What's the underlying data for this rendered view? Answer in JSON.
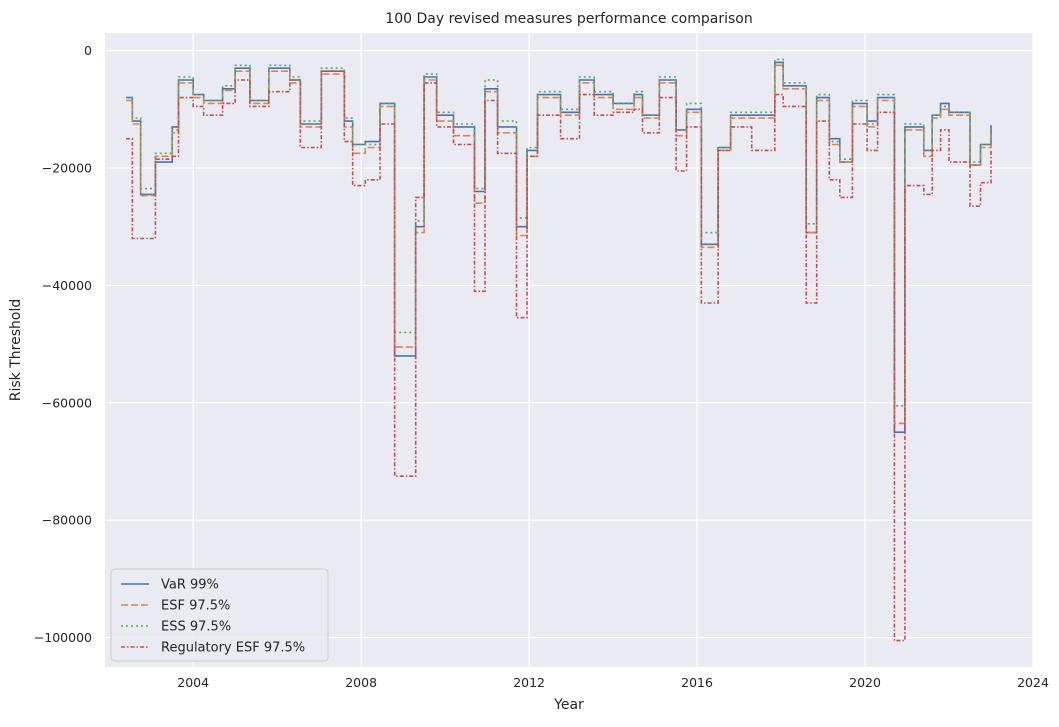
{
  "chart_data": {
    "type": "line",
    "title": "100 Day revised measures performance comparison",
    "xlabel": "Year",
    "ylabel": "Risk Threshold",
    "xlim": [
      2001.9,
      2024.0
    ],
    "ylim": [
      -105000,
      3000
    ],
    "x_ticks": [
      2004,
      2008,
      2012,
      2016,
      2020,
      2024
    ],
    "y_ticks": [
      0,
      -20000,
      -40000,
      -60000,
      -80000,
      -100000
    ],
    "y_tick_labels": [
      "0",
      "−20000",
      "−40000",
      "−60000",
      "−80000",
      "−100000"
    ],
    "grid": true,
    "legend_position": "lower-left",
    "background": "#eaeaf2",
    "series": [
      {
        "name": "VaR 99%",
        "color": "#4c72b0",
        "dash": "solid",
        "x": [
          2002.4,
          2002.55,
          2002.75,
          2003.1,
          2003.5,
          2003.65,
          2004.0,
          2004.25,
          2004.7,
          2005.0,
          2005.35,
          2005.8,
          2006.3,
          2006.55,
          2007.05,
          2007.6,
          2007.8,
          2008.1,
          2008.45,
          2008.8,
          2009.3,
          2009.5,
          2009.8,
          2010.2,
          2010.7,
          2010.95,
          2011.25,
          2011.7,
          2011.95,
          2012.2,
          2012.75,
          2013.2,
          2013.55,
          2014.0,
          2014.5,
          2014.7,
          2015.1,
          2015.5,
          2015.75,
          2016.1,
          2016.5,
          2016.8,
          2017.3,
          2017.85,
          2018.05,
          2018.6,
          2018.85,
          2019.15,
          2019.4,
          2019.7,
          2020.05,
          2020.3,
          2020.7,
          2020.95,
          2021.4,
          2021.6,
          2021.8,
          2022.0,
          2022.5,
          2022.75,
          2023.0
        ],
        "y": [
          -8000,
          -12000,
          -24500,
          -19000,
          -13000,
          -5000,
          -7500,
          -8500,
          -6500,
          -3000,
          -8500,
          -3000,
          -5000,
          -12500,
          -3500,
          -12000,
          -16000,
          -15500,
          -9000,
          -52000,
          -30000,
          -4500,
          -11000,
          -13000,
          -24000,
          -6500,
          -13000,
          -30000,
          -17000,
          -7500,
          -10500,
          -5000,
          -7500,
          -9000,
          -7500,
          -11000,
          -5000,
          -13500,
          -10000,
          -33000,
          -16500,
          -11000,
          -11000,
          -2000,
          -6000,
          -31000,
          -8000,
          -15000,
          -19000,
          -9000,
          -12000,
          -8000,
          -65000,
          -13000,
          -17000,
          -11000,
          -9000,
          -10500,
          -19500,
          -16000,
          -12700
        ]
      },
      {
        "name": "ESF 97.5%",
        "color": "#dd8452",
        "dash": "dashed",
        "x": [
          2002.4,
          2002.55,
          2002.75,
          2003.1,
          2003.5,
          2003.65,
          2004.0,
          2004.25,
          2004.7,
          2005.0,
          2005.35,
          2005.8,
          2006.3,
          2006.55,
          2007.05,
          2007.6,
          2007.8,
          2008.1,
          2008.45,
          2008.8,
          2009.3,
          2009.5,
          2009.8,
          2010.2,
          2010.7,
          2010.95,
          2011.25,
          2011.7,
          2011.95,
          2012.2,
          2012.75,
          2013.2,
          2013.55,
          2014.0,
          2014.5,
          2014.7,
          2015.1,
          2015.5,
          2015.75,
          2016.1,
          2016.5,
          2016.8,
          2017.3,
          2017.85,
          2018.05,
          2018.6,
          2018.85,
          2019.15,
          2019.4,
          2019.7,
          2020.05,
          2020.3,
          2020.7,
          2020.95,
          2021.4,
          2021.6,
          2021.8,
          2022.0,
          2022.5,
          2022.75,
          2023.0
        ],
        "y": [
          -8500,
          -12500,
          -24700,
          -18000,
          -14000,
          -5500,
          -8000,
          -9000,
          -6800,
          -3500,
          -9000,
          -3500,
          -5500,
          -13000,
          -4000,
          -13000,
          -17500,
          -16500,
          -9500,
          -50500,
          -31000,
          -5000,
          -12000,
          -14500,
          -26000,
          -7000,
          -14000,
          -31500,
          -18000,
          -8000,
          -11000,
          -5500,
          -8000,
          -10000,
          -8000,
          -11500,
          -5500,
          -14500,
          -10500,
          -33500,
          -17000,
          -11500,
          -11500,
          -2500,
          -6500,
          -31000,
          -8500,
          -16000,
          -19000,
          -9500,
          -13000,
          -8500,
          -63500,
          -13500,
          -18000,
          -11500,
          -10000,
          -11000,
          -19500,
          -16500,
          -13500
        ]
      },
      {
        "name": "ESS 97.5%",
        "color": "#55a868",
        "dash": "dotted",
        "x": [
          2002.4,
          2002.55,
          2002.75,
          2003.1,
          2003.5,
          2003.65,
          2004.0,
          2004.25,
          2004.7,
          2005.0,
          2005.35,
          2005.8,
          2006.3,
          2006.55,
          2007.05,
          2007.6,
          2007.8,
          2008.1,
          2008.45,
          2008.8,
          2009.3,
          2009.5,
          2009.8,
          2010.2,
          2010.7,
          2010.95,
          2011.25,
          2011.7,
          2011.95,
          2012.2,
          2012.75,
          2013.2,
          2013.55,
          2014.0,
          2014.5,
          2014.7,
          2015.1,
          2015.5,
          2015.75,
          2016.1,
          2016.5,
          2016.8,
          2017.3,
          2017.85,
          2018.05,
          2018.6,
          2018.85,
          2019.15,
          2019.4,
          2019.7,
          2020.05,
          2020.3,
          2020.7,
          2020.95,
          2021.4,
          2021.6,
          2021.8,
          2022.0,
          2022.5,
          2022.75,
          2023.0
        ],
        "y": [
          -8000,
          -11500,
          -23500,
          -17500,
          -13500,
          -4500,
          -7500,
          -8500,
          -6000,
          -2500,
          -8500,
          -2500,
          -4500,
          -12000,
          -3000,
          -11500,
          -16000,
          -16000,
          -9000,
          -48000,
          -29000,
          -4000,
          -10500,
          -12500,
          -23500,
          -5000,
          -12000,
          -28500,
          -16500,
          -7000,
          -10000,
          -4500,
          -7000,
          -9000,
          -7000,
          -11000,
          -4500,
          -13500,
          -9000,
          -31000,
          -16500,
          -10500,
          -10500,
          -1500,
          -5500,
          -29500,
          -7500,
          -15500,
          -18500,
          -8500,
          -12500,
          -7500,
          -60500,
          -12500,
          -17000,
          -11000,
          -9500,
          -10500,
          -19000,
          -16000,
          -13000
        ]
      },
      {
        "name": "Regulatory ESF 97.5%",
        "color": "#c44e52",
        "dash": "dashdot",
        "x": [
          2002.4,
          2002.55,
          2002.75,
          2003.1,
          2003.5,
          2003.65,
          2004.0,
          2004.25,
          2004.7,
          2005.0,
          2005.35,
          2005.8,
          2006.3,
          2006.55,
          2007.05,
          2007.6,
          2007.8,
          2008.1,
          2008.45,
          2008.8,
          2009.3,
          2009.5,
          2009.8,
          2010.2,
          2010.7,
          2010.95,
          2011.25,
          2011.7,
          2011.95,
          2012.2,
          2012.75,
          2013.2,
          2013.55,
          2014.0,
          2014.5,
          2014.7,
          2015.1,
          2015.5,
          2015.75,
          2016.1,
          2016.5,
          2016.8,
          2017.3,
          2017.85,
          2018.05,
          2018.6,
          2018.85,
          2019.15,
          2019.4,
          2019.7,
          2020.05,
          2020.3,
          2020.7,
          2020.95,
          2021.4,
          2021.6,
          2021.8,
          2022.0,
          2022.5,
          2022.75,
          2023.0
        ],
        "y": [
          -15000,
          -32000,
          -32000,
          -18500,
          -18000,
          -8000,
          -9500,
          -11000,
          -9000,
          -5000,
          -9500,
          -7000,
          -5000,
          -16500,
          -3500,
          -15500,
          -23000,
          -22000,
          -12500,
          -72500,
          -25000,
          -5500,
          -13000,
          -16000,
          -41000,
          -8500,
          -17500,
          -45500,
          -18000,
          -11000,
          -15000,
          -7500,
          -11000,
          -10500,
          -10000,
          -14000,
          -8000,
          -20500,
          -13000,
          -43000,
          -17000,
          -13000,
          -17000,
          -7500,
          -9500,
          -43000,
          -12000,
          -22000,
          -25000,
          -12500,
          -17000,
          -10500,
          -100500,
          -23000,
          -24500,
          -17000,
          -13500,
          -19000,
          -26500,
          -22500,
          -17000
        ]
      }
    ]
  }
}
